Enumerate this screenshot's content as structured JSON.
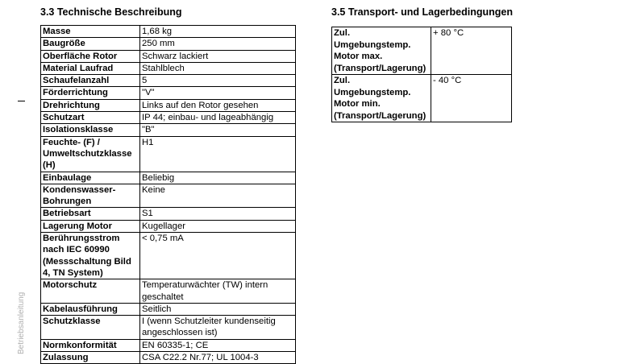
{
  "left": {
    "title": "3.3 Technische Beschreibung",
    "rows": [
      [
        "Masse",
        "1,68 kg"
      ],
      [
        "Baugröße",
        "250 mm"
      ],
      [
        "Oberfläche Rotor",
        "Schwarz lackiert"
      ],
      [
        "Material Laufrad",
        "Stahlblech"
      ],
      [
        "Schaufelanzahl",
        "5"
      ],
      [
        "Förderrichtung",
        "\"V\""
      ],
      [
        "Drehrichtung",
        "Links auf den Rotor gesehen"
      ],
      [
        "Schutzart",
        "IP 44; einbau- und lageabhängig"
      ],
      [
        "Isolationsklasse",
        "\"B\""
      ],
      [
        "Feuchte- (F) / Umweltschutzklasse (H)",
        "H1"
      ],
      [
        "Einbaulage",
        "Beliebig"
      ],
      [
        "Kondenswasser-Bohrungen",
        "Keine"
      ],
      [
        "Betriebsart",
        "S1"
      ],
      [
        "Lagerung Motor",
        "Kugellager"
      ],
      [
        "Berührungsstrom nach IEC 60990 (Messschaltung Bild 4, TN System)",
        "< 0,75 mA"
      ],
      [
        "Motorschutz",
        "Temperaturwächter (TW) intern geschaltet"
      ],
      [
        "Kabelausführung",
        "Seitlich"
      ],
      [
        "Schutzklasse",
        "I (wenn Schutzleiter kundenseitig angeschlossen ist)"
      ],
      [
        "Normkonformität",
        "EN 60335-1; CE"
      ],
      [
        "Zulassung",
        "CSA C22.2 Nr.77; UL 1004-3"
      ]
    ]
  },
  "right": {
    "title": "3.5 Transport- und Lagerbedingungen",
    "rows": [
      [
        "Zul. Umgebungstemp. Motor max. (Transport/Lagerung)",
        "+ 80 °C"
      ],
      [
        "Zul. Umgebungstemp. Motor min. (Transport/Lagerung)",
        "- 40 °C"
      ]
    ]
  },
  "sidebar_text": "Betriebsanleitung"
}
